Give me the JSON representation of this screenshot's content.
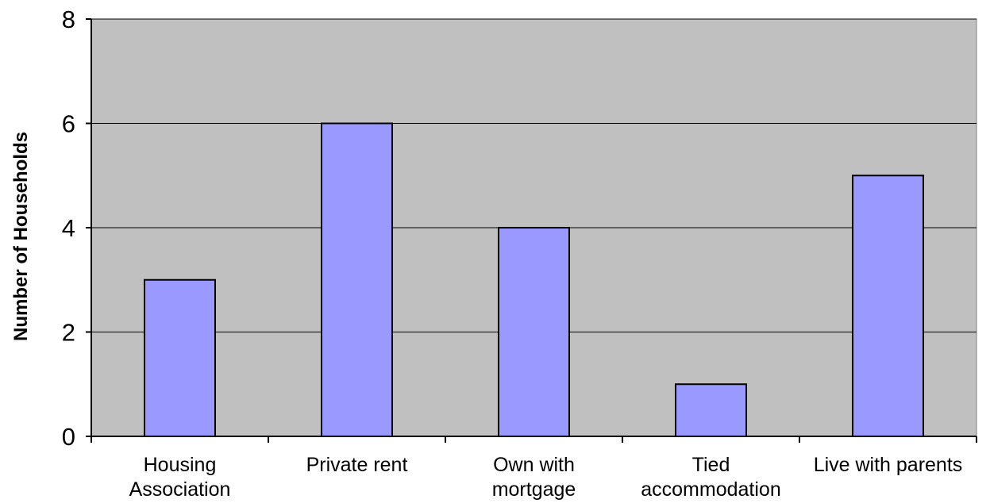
{
  "chart_data": {
    "type": "bar",
    "categories": [
      [
        "Housing",
        "Association"
      ],
      [
        "Private rent"
      ],
      [
        "Own with",
        "mortgage"
      ],
      [
        "Tied",
        "accommodation"
      ],
      [
        "Live with parents"
      ]
    ],
    "values": [
      3,
      6,
      4,
      1,
      5
    ],
    "title": "",
    "xlabel": "",
    "ylabel": "Number of Households",
    "ylim": [
      0,
      8
    ],
    "yticks": [
      "0",
      "2",
      "4",
      "6",
      "8"
    ],
    "grid": true,
    "legend": "none",
    "colors": {
      "plot_background": "#c0c0c0",
      "bar_fill": "#9999ff",
      "bar_stroke": "#000000",
      "gridline": "#000000"
    }
  }
}
